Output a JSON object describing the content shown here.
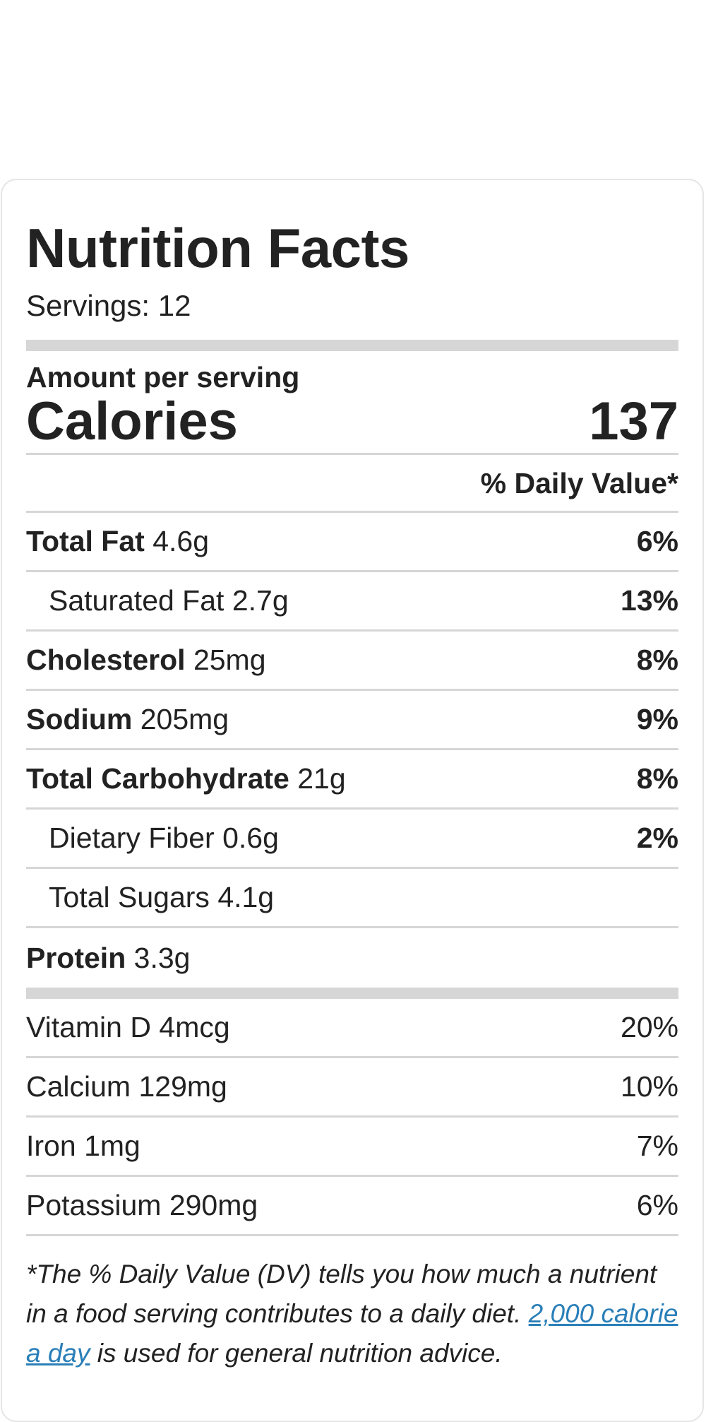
{
  "nutrition": {
    "title": "Nutrition Facts",
    "servings": "Servings: 12",
    "amount_per_serving": "Amount per serving",
    "calories_label": "Calories",
    "calories_value": "137",
    "dv_header": "% Daily Value*",
    "rows": [
      {
        "name": "Total Fat",
        "amount": "4.6g",
        "pct": "6%"
      },
      {
        "name": "Saturated Fat",
        "amount": "2.7g",
        "pct": "13%"
      },
      {
        "name": "Cholesterol",
        "amount": "25mg",
        "pct": "8%"
      },
      {
        "name": "Sodium",
        "amount": "205mg",
        "pct": "9%"
      },
      {
        "name": "Total Carbohydrate",
        "amount": "21g",
        "pct": "8%"
      },
      {
        "name": "Dietary Fiber",
        "amount": "0.6g",
        "pct": "2%"
      },
      {
        "name": "Total Sugars",
        "amount": "4.1g",
        "pct": ""
      },
      {
        "name": "Protein",
        "amount": "3.3g",
        "pct": ""
      }
    ],
    "vitamins": [
      {
        "name": "Vitamin D",
        "amount": "4mcg",
        "pct": "20%"
      },
      {
        "name": "Calcium",
        "amount": "129mg",
        "pct": "10%"
      },
      {
        "name": "Iron",
        "amount": "1mg",
        "pct": "7%"
      },
      {
        "name": "Potassium",
        "amount": "290mg",
        "pct": "6%"
      }
    ],
    "footnote_text": "*The % Daily Value (DV) tells you how much a nutrient in a food serving contributes to a daily diet.",
    "footnote_link": "2,000 calorie a day",
    "footnote_tail": "is used for general nutrition advice."
  },
  "colors": {
    "text": "#222222",
    "divider": "#d6d6d6",
    "link": "#2a7fb8",
    "card_border": "#e5e5e5"
  }
}
